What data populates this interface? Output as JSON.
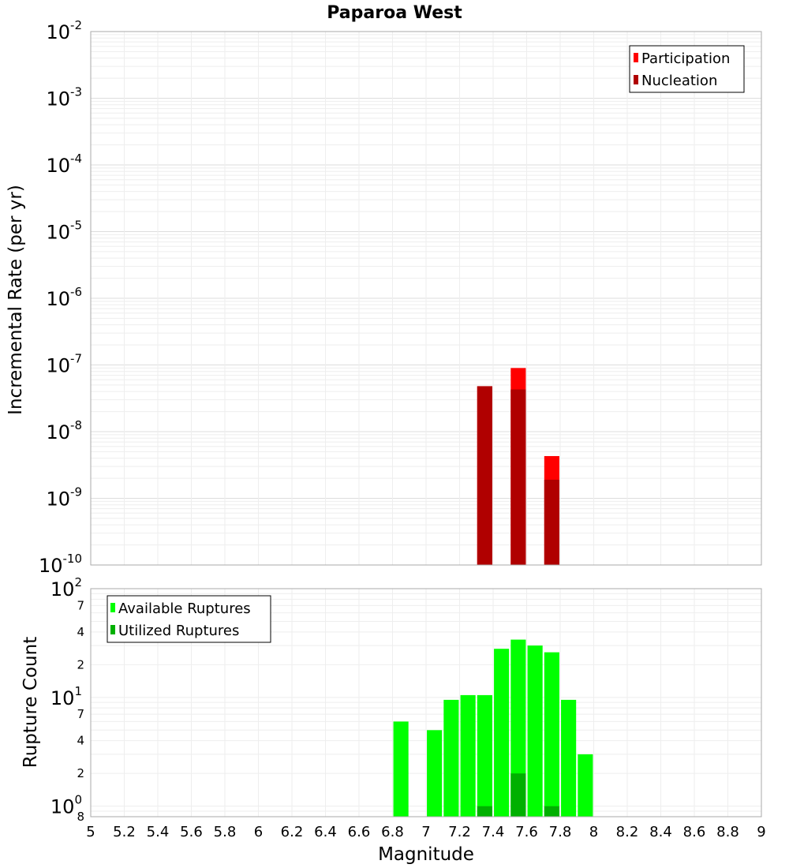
{
  "chart_data": [
    {
      "type": "bar",
      "title": "Paparoa West",
      "xlabel": "",
      "ylabel": "Incremental Rate (per yr)",
      "xlim": [
        5,
        9
      ],
      "ylim": [
        1e-10,
        0.01
      ],
      "yscale": "log",
      "grid": true,
      "legend_position": "top-right",
      "y_ticks": [
        {
          "base": "10",
          "exp": "-10"
        },
        {
          "base": "10",
          "exp": "-9"
        },
        {
          "base": "10",
          "exp": "-8"
        },
        {
          "base": "10",
          "exp": "-7"
        },
        {
          "base": "10",
          "exp": "-6"
        },
        {
          "base": "10",
          "exp": "-5"
        },
        {
          "base": "10",
          "exp": "-4"
        },
        {
          "base": "10",
          "exp": "-3"
        },
        {
          "base": "10",
          "exp": "-2"
        }
      ],
      "bar_width": 0.09,
      "series": [
        {
          "name": "Participation",
          "color": "#ff0000",
          "x": [
            7.35,
            7.55,
            7.75
          ],
          "values": [
            4.8e-08,
            9e-08,
            4.3e-09
          ]
        },
        {
          "name": "Nucleation",
          "color": "#b00000",
          "x": [
            7.35,
            7.55,
            7.75
          ],
          "values": [
            4.8e-08,
            4.3e-08,
            1.9e-09
          ]
        }
      ]
    },
    {
      "type": "bar",
      "title": "",
      "xlabel": "Magnitude",
      "ylabel": "Rupture Count",
      "xlim": [
        5,
        9
      ],
      "ylim": [
        0.8,
        100
      ],
      "yscale": "log",
      "grid": true,
      "legend_position": "top-left",
      "y_major_ticks": [
        {
          "base": "10",
          "exp": "0",
          "value": 1
        },
        {
          "base": "10",
          "exp": "1",
          "value": 10
        },
        {
          "base": "10",
          "exp": "2",
          "value": 100
        }
      ],
      "y_minor_ticks": [
        {
          "label": "8",
          "value": 0.8
        },
        {
          "label": "2",
          "value": 2
        },
        {
          "label": "4",
          "value": 4
        },
        {
          "label": "7",
          "value": 7
        },
        {
          "label": "2",
          "value": 20
        },
        {
          "label": "4",
          "value": 40
        },
        {
          "label": "7",
          "value": 70
        }
      ],
      "x_ticks": [
        "5",
        "5.2",
        "5.4",
        "5.6",
        "5.8",
        "6",
        "6.2",
        "6.4",
        "6.6",
        "6.8",
        "7",
        "7.2",
        "7.4",
        "7.6",
        "7.8",
        "8",
        "8.2",
        "8.4",
        "8.6",
        "8.8",
        "9"
      ],
      "bar_width": 0.09,
      "series": [
        {
          "name": "Available Ruptures",
          "color": "#00ff00",
          "x": [
            6.85,
            7.05,
            7.15,
            7.25,
            7.35,
            7.45,
            7.55,
            7.65,
            7.75,
            7.85,
            7.95
          ],
          "values": [
            6,
            5,
            9.5,
            10.5,
            10.5,
            28,
            34,
            30,
            26,
            9.5,
            3
          ]
        },
        {
          "name": "Utilized Ruptures",
          "color": "#00b000",
          "x": [
            7.35,
            7.55,
            7.75
          ],
          "values": [
            1,
            2,
            1
          ]
        }
      ]
    }
  ]
}
